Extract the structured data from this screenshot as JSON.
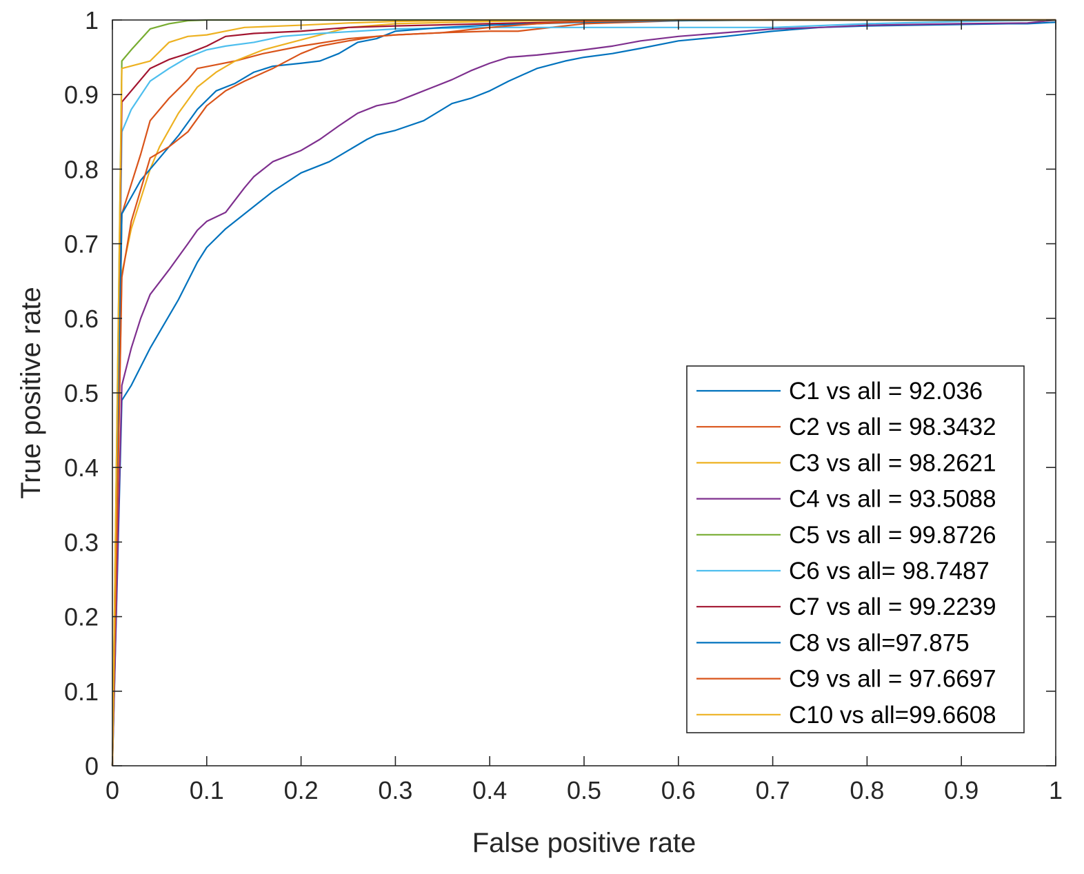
{
  "chart_data": {
    "type": "line",
    "title": "",
    "xlabel": "False positive rate",
    "ylabel": "True positive rate",
    "xlim": [
      0,
      1
    ],
    "ylim": [
      0,
      1
    ],
    "xticks": [
      "0",
      "0.1",
      "0.2",
      "0.3",
      "0.4",
      "0.5",
      "0.6",
      "0.7",
      "0.8",
      "0.9",
      "1"
    ],
    "yticks": [
      "0",
      "0.1",
      "0.2",
      "0.3",
      "0.4",
      "0.5",
      "0.6",
      "0.7",
      "0.8",
      "0.9",
      "1"
    ],
    "grid": false,
    "legend_position": "lower-right",
    "series": [
      {
        "name": "C1 vs all = 92.036",
        "color": "#0072BD",
        "points": [
          [
            0,
            0
          ],
          [
            0.01,
            0.49
          ],
          [
            0.02,
            0.51
          ],
          [
            0.04,
            0.56
          ],
          [
            0.07,
            0.625
          ],
          [
            0.09,
            0.675
          ],
          [
            0.1,
            0.695
          ],
          [
            0.12,
            0.72
          ],
          [
            0.15,
            0.75
          ],
          [
            0.17,
            0.77
          ],
          [
            0.2,
            0.795
          ],
          [
            0.23,
            0.81
          ],
          [
            0.25,
            0.825
          ],
          [
            0.27,
            0.84
          ],
          [
            0.28,
            0.846
          ],
          [
            0.3,
            0.852
          ],
          [
            0.33,
            0.865
          ],
          [
            0.36,
            0.888
          ],
          [
            0.38,
            0.895
          ],
          [
            0.4,
            0.905
          ],
          [
            0.42,
            0.918
          ],
          [
            0.45,
            0.935
          ],
          [
            0.48,
            0.945
          ],
          [
            0.5,
            0.95
          ],
          [
            0.53,
            0.955
          ],
          [
            0.56,
            0.962
          ],
          [
            0.6,
            0.972
          ],
          [
            0.65,
            0.978
          ],
          [
            0.7,
            0.985
          ],
          [
            0.75,
            0.99
          ],
          [
            0.8,
            0.992
          ],
          [
            0.85,
            0.993
          ],
          [
            0.9,
            0.994
          ],
          [
            0.95,
            0.995
          ],
          [
            0.97,
            0.995
          ],
          [
            1,
            0.997
          ]
        ]
      },
      {
        "name": "C2 vs all = 98.3432",
        "color": "#D95319",
        "points": [
          [
            0,
            0
          ],
          [
            0.01,
            0.74
          ],
          [
            0.02,
            0.78
          ],
          [
            0.03,
            0.82
          ],
          [
            0.04,
            0.865
          ],
          [
            0.06,
            0.895
          ],
          [
            0.08,
            0.92
          ],
          [
            0.09,
            0.935
          ],
          [
            0.11,
            0.94
          ],
          [
            0.13,
            0.945
          ],
          [
            0.16,
            0.955
          ],
          [
            0.2,
            0.965
          ],
          [
            0.25,
            0.975
          ],
          [
            0.3,
            0.98
          ],
          [
            0.35,
            0.983
          ],
          [
            0.4,
            0.985
          ],
          [
            0.43,
            0.985
          ],
          [
            0.5,
            0.995
          ],
          [
            0.55,
            0.997
          ],
          [
            0.6,
            0.999
          ],
          [
            0.7,
            1
          ],
          [
            1,
            1
          ]
        ]
      },
      {
        "name": "C3 vs all = 98.2621",
        "color": "#EDB120",
        "points": [
          [
            0,
            0
          ],
          [
            0.01,
            0.66
          ],
          [
            0.02,
            0.72
          ],
          [
            0.04,
            0.8
          ],
          [
            0.05,
            0.83
          ],
          [
            0.07,
            0.875
          ],
          [
            0.09,
            0.91
          ],
          [
            0.11,
            0.93
          ],
          [
            0.13,
            0.945
          ],
          [
            0.16,
            0.96
          ],
          [
            0.19,
            0.97
          ],
          [
            0.22,
            0.98
          ],
          [
            0.25,
            0.99
          ],
          [
            0.3,
            0.995
          ],
          [
            0.4,
            0.998
          ],
          [
            0.5,
            1
          ],
          [
            1,
            1
          ]
        ]
      },
      {
        "name": "C4 vs all = 93.5088",
        "color": "#7E2F8E",
        "points": [
          [
            0,
            0
          ],
          [
            0.01,
            0.51
          ],
          [
            0.02,
            0.56
          ],
          [
            0.03,
            0.6
          ],
          [
            0.04,
            0.632
          ],
          [
            0.06,
            0.665
          ],
          [
            0.08,
            0.7
          ],
          [
            0.09,
            0.718
          ],
          [
            0.1,
            0.73
          ],
          [
            0.12,
            0.742
          ],
          [
            0.14,
            0.775
          ],
          [
            0.15,
            0.79
          ],
          [
            0.17,
            0.81
          ],
          [
            0.2,
            0.825
          ],
          [
            0.22,
            0.84
          ],
          [
            0.24,
            0.858
          ],
          [
            0.26,
            0.875
          ],
          [
            0.28,
            0.885
          ],
          [
            0.3,
            0.89
          ],
          [
            0.32,
            0.9
          ],
          [
            0.34,
            0.91
          ],
          [
            0.36,
            0.92
          ],
          [
            0.38,
            0.932
          ],
          [
            0.4,
            0.942
          ],
          [
            0.42,
            0.95
          ],
          [
            0.45,
            0.953
          ],
          [
            0.5,
            0.96
          ],
          [
            0.53,
            0.965
          ],
          [
            0.56,
            0.972
          ],
          [
            0.6,
            0.978
          ],
          [
            0.65,
            0.983
          ],
          [
            0.7,
            0.988
          ],
          [
            0.75,
            0.99
          ],
          [
            0.8,
            0.993
          ],
          [
            0.9,
            0.995
          ],
          [
            0.97,
            0.996
          ],
          [
            1,
            1
          ]
        ]
      },
      {
        "name": "C5 vs all = 99.8726",
        "color": "#77AC30",
        "points": [
          [
            0,
            0
          ],
          [
            0.01,
            0.945
          ],
          [
            0.02,
            0.96
          ],
          [
            0.04,
            0.988
          ],
          [
            0.06,
            0.995
          ],
          [
            0.08,
            0.999
          ],
          [
            0.1,
            1
          ],
          [
            1,
            1
          ]
        ]
      },
      {
        "name": "C6 vs all= 98.7487",
        "color": "#4DBEEE",
        "points": [
          [
            0,
            0
          ],
          [
            0.01,
            0.85
          ],
          [
            0.02,
            0.88
          ],
          [
            0.04,
            0.918
          ],
          [
            0.06,
            0.935
          ],
          [
            0.08,
            0.95
          ],
          [
            0.1,
            0.96
          ],
          [
            0.12,
            0.965
          ],
          [
            0.15,
            0.97
          ],
          [
            0.18,
            0.978
          ],
          [
            0.22,
            0.982
          ],
          [
            0.3,
            0.988
          ],
          [
            0.4,
            0.99
          ],
          [
            0.5,
            0.99
          ],
          [
            0.7,
            0.99
          ],
          [
            0.8,
            0.995
          ],
          [
            0.9,
            0.998
          ],
          [
            1,
            1
          ]
        ]
      },
      {
        "name": "C7 vs all = 99.2239",
        "color": "#A2142F",
        "points": [
          [
            0,
            0
          ],
          [
            0.01,
            0.89
          ],
          [
            0.02,
            0.905
          ],
          [
            0.04,
            0.935
          ],
          [
            0.06,
            0.947
          ],
          [
            0.08,
            0.955
          ],
          [
            0.1,
            0.965
          ],
          [
            0.12,
            0.978
          ],
          [
            0.15,
            0.982
          ],
          [
            0.2,
            0.985
          ],
          [
            0.25,
            0.99
          ],
          [
            0.3,
            0.992
          ],
          [
            0.4,
            0.995
          ],
          [
            0.5,
            0.998
          ],
          [
            0.6,
            1
          ],
          [
            1,
            1
          ]
        ]
      },
      {
        "name": "C8 vs all=97.875",
        "color": "#0072BD",
        "points": [
          [
            0,
            0
          ],
          [
            0.01,
            0.74
          ],
          [
            0.03,
            0.785
          ],
          [
            0.05,
            0.815
          ],
          [
            0.07,
            0.845
          ],
          [
            0.09,
            0.88
          ],
          [
            0.11,
            0.905
          ],
          [
            0.13,
            0.915
          ],
          [
            0.15,
            0.93
          ],
          [
            0.17,
            0.938
          ],
          [
            0.2,
            0.942
          ],
          [
            0.22,
            0.945
          ],
          [
            0.24,
            0.955
          ],
          [
            0.26,
            0.97
          ],
          [
            0.28,
            0.975
          ],
          [
            0.3,
            0.985
          ],
          [
            0.35,
            0.99
          ],
          [
            0.4,
            0.993
          ],
          [
            0.5,
            0.997
          ],
          [
            0.6,
            0.999
          ],
          [
            0.7,
            1
          ],
          [
            1,
            1
          ]
        ]
      },
      {
        "name": "C9 vs all = 97.6697",
        "color": "#D95319",
        "points": [
          [
            0,
            0
          ],
          [
            0.01,
            0.655
          ],
          [
            0.02,
            0.73
          ],
          [
            0.04,
            0.815
          ],
          [
            0.06,
            0.83
          ],
          [
            0.08,
            0.85
          ],
          [
            0.1,
            0.885
          ],
          [
            0.12,
            0.905
          ],
          [
            0.14,
            0.918
          ],
          [
            0.17,
            0.935
          ],
          [
            0.2,
            0.955
          ],
          [
            0.22,
            0.965
          ],
          [
            0.25,
            0.972
          ],
          [
            0.28,
            0.978
          ],
          [
            0.3,
            0.98
          ],
          [
            0.35,
            0.983
          ],
          [
            0.4,
            0.99
          ],
          [
            0.45,
            0.995
          ],
          [
            0.5,
            0.998
          ],
          [
            0.6,
            1
          ],
          [
            1,
            1
          ]
        ]
      },
      {
        "name": "C10 vs all=99.6608",
        "color": "#EDB120",
        "points": [
          [
            0,
            0
          ],
          [
            0.01,
            0.935
          ],
          [
            0.04,
            0.945
          ],
          [
            0.06,
            0.97
          ],
          [
            0.08,
            0.978
          ],
          [
            0.1,
            0.98
          ],
          [
            0.12,
            0.985
          ],
          [
            0.14,
            0.99
          ],
          [
            0.2,
            0.993
          ],
          [
            0.25,
            0.996
          ],
          [
            0.3,
            0.998
          ],
          [
            0.4,
            1
          ],
          [
            1,
            1
          ]
        ]
      }
    ]
  }
}
